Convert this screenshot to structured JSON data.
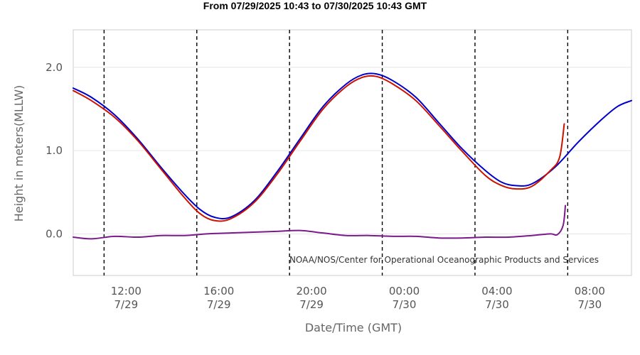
{
  "chart_data": {
    "type": "line",
    "title": "From 07/29/2025 10:43 to 07/30/2025 10:43 GMT",
    "xlabel": "Date/Time (GMT)",
    "ylabel": "Height in meters(MLLW)",
    "credit": "NOAA/NOS/Center for Operational Oceanographic Products and Services",
    "x_unit": "hours since 07/29 00:00 GMT",
    "xlim": [
      9.72,
      33.8
    ],
    "ylim": [
      -0.5,
      2.45
    ],
    "y_ticks": [
      {
        "value": 0.0,
        "label": "0.0"
      },
      {
        "value": 1.0,
        "label": "1.0"
      },
      {
        "value": 2.0,
        "label": "2.0"
      }
    ],
    "x_ticks": [
      {
        "value": 12,
        "time": "12:00",
        "date": "7/29"
      },
      {
        "value": 16,
        "time": "16:00",
        "date": "7/29"
      },
      {
        "value": 20,
        "time": "20:00",
        "date": "7/29"
      },
      {
        "value": 24,
        "time": "00:00",
        "date": "7/30"
      },
      {
        "value": 28,
        "time": "04:00",
        "date": "7/30"
      },
      {
        "value": 32,
        "time": "08:00",
        "date": "7/30"
      }
    ],
    "vertical_dashed_lines": [
      11.05,
      15.05,
      19.05,
      23.05,
      27.05,
      31.05
    ],
    "grid": "horizontal",
    "series": [
      {
        "color": "#0000cc",
        "x": [
          9.72,
          10.5,
          11.5,
          12.5,
          13.5,
          14.5,
          15.2,
          15.8,
          16.5,
          17.5,
          18.5,
          19.5,
          20.5,
          21.5,
          22.2,
          22.8,
          23.5,
          24.5,
          25.5,
          26.5,
          27.5,
          28.2,
          28.8,
          29.5,
          30.5,
          31.5,
          32.5,
          33.2,
          33.8
        ],
        "y": [
          1.75,
          1.64,
          1.43,
          1.14,
          0.8,
          0.48,
          0.29,
          0.2,
          0.2,
          0.39,
          0.74,
          1.14,
          1.53,
          1.8,
          1.91,
          1.92,
          1.84,
          1.64,
          1.33,
          1.02,
          0.76,
          0.62,
          0.58,
          0.6,
          0.8,
          1.1,
          1.37,
          1.53,
          1.6
        ]
      },
      {
        "color": "#cc1100",
        "x": [
          9.72,
          10.5,
          11.5,
          12.5,
          13.5,
          14.5,
          15.2,
          15.8,
          16.5,
          17.5,
          18.5,
          19.5,
          20.5,
          21.5,
          22.2,
          22.8,
          23.5,
          24.5,
          25.5,
          26.5,
          27.5,
          28.2,
          28.8,
          29.5,
          30.3,
          30.7,
          30.9
        ],
        "y": [
          1.72,
          1.6,
          1.4,
          1.12,
          0.78,
          0.44,
          0.24,
          0.16,
          0.18,
          0.37,
          0.71,
          1.11,
          1.5,
          1.77,
          1.88,
          1.89,
          1.8,
          1.6,
          1.3,
          0.99,
          0.7,
          0.58,
          0.54,
          0.57,
          0.76,
          0.92,
          1.32
        ]
      },
      {
        "color": "#7b1a8a",
        "x": [
          9.72,
          10.5,
          11.5,
          12.5,
          13.5,
          14.5,
          15.5,
          16.5,
          17.5,
          18.5,
          19.5,
          20.5,
          21.5,
          22.5,
          23.5,
          24.5,
          25.5,
          26.5,
          27.5,
          28.5,
          29.5,
          30.3,
          30.6,
          30.85,
          30.95
        ],
        "y": [
          -0.04,
          -0.06,
          -0.03,
          -0.04,
          -0.02,
          -0.02,
          0.0,
          0.01,
          0.02,
          0.03,
          0.04,
          0.01,
          -0.02,
          -0.02,
          -0.03,
          -0.03,
          -0.05,
          -0.05,
          -0.04,
          -0.04,
          -0.02,
          0.0,
          -0.01,
          0.1,
          0.34
        ]
      }
    ]
  }
}
